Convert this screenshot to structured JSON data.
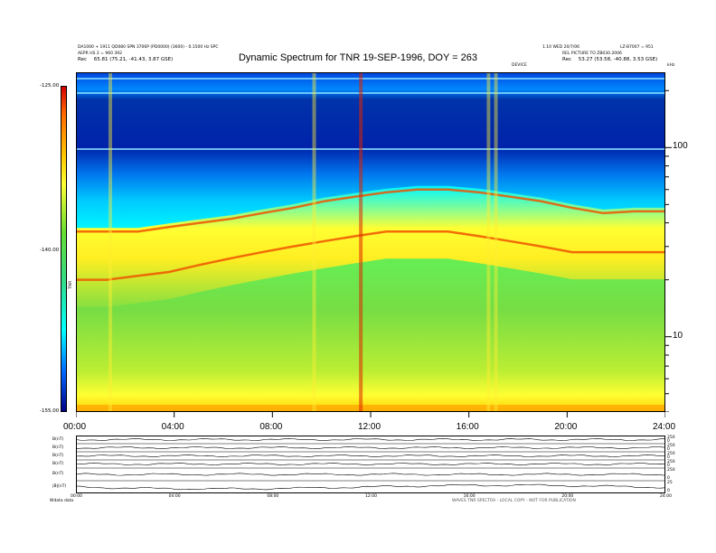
{
  "header": {
    "left_line1": "DA1000 + 1911 QD080 SPN 3706P (PD0000) (3600) - 0.1500 Hz SPC",
    "left_line2": "AEPR HS 2 = 960 392",
    "left_rec_label": "Rec",
    "left_rec_value": "65.81 (75.21, -41.43, 3.87 GSE)",
    "right_line1": "1.10 WED 20/7/06",
    "right_line1b": "LZ-B7007 = 951",
    "right_line2": "REL PICTURE TO ZB030.2006",
    "right_rec_label": "Rec",
    "right_rec_value": "53.27 (53.58, -40.88, 3.53 GSE)",
    "center_small": "DEVICE",
    "corner_unit": "kHz"
  },
  "chart_data": {
    "type": "heatmap",
    "title": "Dynamic Spectrum for TNR 19-SEP-1996, DOY = 263",
    "xlabel": "",
    "ylabel": "",
    "x_ticks": [
      "00:00",
      "04:00",
      "08:00",
      "12:00",
      "16:00",
      "20:00",
      "24:00"
    ],
    "x_range_hours": [
      0,
      24
    ],
    "y_ticks": [
      "100",
      "10"
    ],
    "y_ticks_values": [
      100,
      10
    ],
    "y_scale": "log",
    "y_range_khz": [
      4,
      250
    ],
    "colorbar": {
      "ticks": [
        "-125.00",
        "-140.00",
        "-155.00"
      ],
      "tick_values": [
        -125,
        -140,
        -155
      ],
      "label": "TNR"
    },
    "features": {
      "plasma_line_upper_khz": [
        36,
        36,
        36,
        38,
        40,
        42,
        45,
        48,
        52,
        55,
        58,
        60,
        60,
        58,
        55,
        52,
        48,
        45,
        46,
        46
      ],
      "plasma_line_lower_khz": [
        20,
        20,
        21,
        22,
        24,
        26,
        28,
        30,
        32,
        34,
        36,
        36,
        36,
        34,
        32,
        30,
        28,
        28,
        28,
        28
      ],
      "burst_hours": [
        1.4,
        9.7,
        11.6,
        16.8,
        17.1
      ]
    }
  },
  "lower_panels": {
    "labels": [
      "B(nT)",
      "B(nT)",
      "B(nT)",
      "B(nT)",
      "B(nT)",
      "|B|(nT)"
    ],
    "right_scale": [
      "250",
      "0",
      "250",
      "0",
      "250",
      "0",
      "250",
      "0",
      "250",
      "0",
      "25",
      "0"
    ],
    "x_ticks": [
      "00:00",
      "04:00",
      "08:00",
      "12:00",
      "16:00",
      "20:00",
      "24:00"
    ],
    "footer_left": "Wdata  data",
    "footer_right": "WAVES TNR SPECTRA - LOCAL COPY - NOT FOR PUBLICATION"
  },
  "colors": {
    "background": "#ffffff",
    "spectrum_high": "#d40000",
    "spectrum_mid": "#ffff33",
    "spectrum_low": "#000088"
  }
}
